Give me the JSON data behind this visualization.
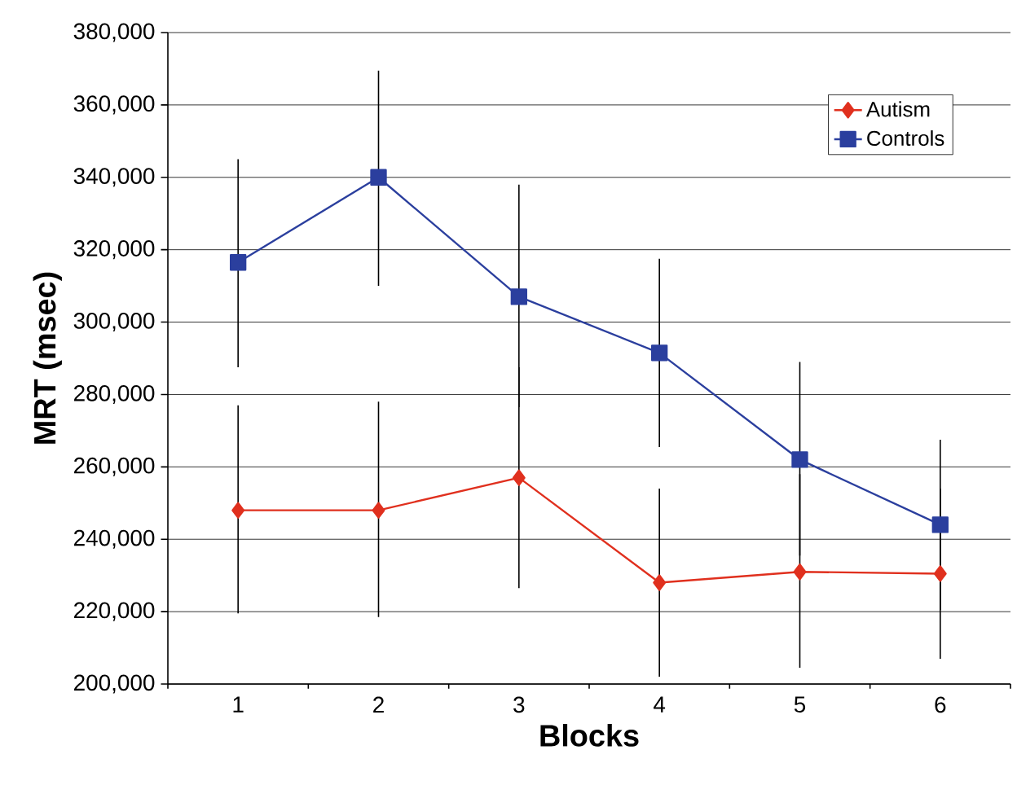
{
  "chart_data": {
    "type": "line",
    "xlabel": "Blocks",
    "ylabel": "MRT (msec)",
    "categories": [
      "1",
      "2",
      "3",
      "4",
      "5",
      "6"
    ],
    "series": [
      {
        "name": "Autism",
        "color": "#e0301e",
        "marker": "diamond",
        "values": [
          248000,
          248000,
          257000,
          228000,
          231000,
          230500
        ],
        "errors": [
          [
            219500,
            277000
          ],
          [
            218500,
            278000
          ],
          [
            226500,
            287500
          ],
          [
            202000,
            254000
          ],
          [
            204500,
            258000
          ],
          [
            207000,
            254000
          ]
        ]
      },
      {
        "name": "Controls",
        "color": "#2b3f9e",
        "marker": "square",
        "values": [
          316500,
          340000,
          307000,
          291500,
          262000,
          244000
        ],
        "errors": [
          [
            287500,
            345000
          ],
          [
            310000,
            369500
          ],
          [
            276500,
            338000
          ],
          [
            265500,
            317500
          ],
          [
            235500,
            289000
          ],
          [
            220500,
            267500
          ]
        ]
      }
    ],
    "ylim": [
      200000,
      380000
    ],
    "yticks": [
      {
        "value": 200000,
        "label": "200,000"
      },
      {
        "value": 220000,
        "label": "220,000"
      },
      {
        "value": 240000,
        "label": "240,000"
      },
      {
        "value": 260000,
        "label": "260,000"
      },
      {
        "value": 280000,
        "label": "280,000"
      },
      {
        "value": 300000,
        "label": "300,000"
      },
      {
        "value": 320000,
        "label": "320,000"
      },
      {
        "value": 340000,
        "label": "340,000"
      },
      {
        "value": 360000,
        "label": "360,000"
      },
      {
        "value": 380000,
        "label": "380,000"
      }
    ],
    "grid": "y",
    "legend": "top right",
    "line_style": "solid"
  }
}
